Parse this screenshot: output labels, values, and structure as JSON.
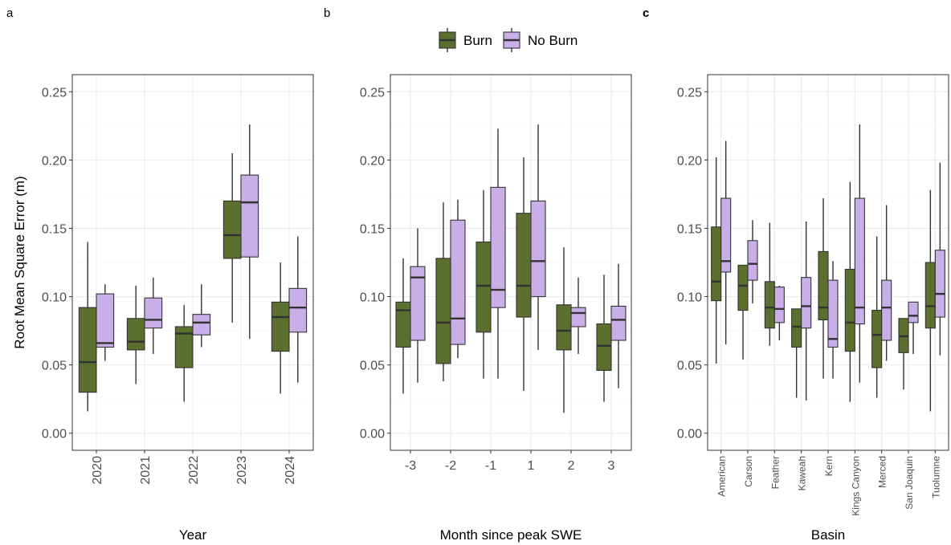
{
  "colors": {
    "burn": "#5b6f2e",
    "noburn": "#c9aee8"
  },
  "legend": {
    "burn_label": "Burn",
    "noburn_label": "No Burn"
  },
  "y_axis": {
    "label": "Root Mean Square Error (m)",
    "ticks": [
      "0.00",
      "0.05",
      "0.10",
      "0.15",
      "0.20",
      "0.25"
    ]
  },
  "chart_data": [
    {
      "type": "box",
      "panel_label": "a",
      "xlabel": "Year",
      "ylabel": "Root Mean Square Error (m)",
      "ylim": [
        0,
        0.25
      ],
      "x_label_rotated": true,
      "categories": [
        "2020",
        "2021",
        "2022",
        "2023",
        "2024"
      ],
      "series": [
        {
          "name": "Burn",
          "boxes": [
            {
              "min": 0.016,
              "q1": 0.03,
              "median": 0.052,
              "q3": 0.092,
              "max": 0.14
            },
            {
              "min": 0.036,
              "q1": 0.061,
              "median": 0.067,
              "q3": 0.084,
              "max": 0.108
            },
            {
              "min": 0.023,
              "q1": 0.048,
              "median": 0.073,
              "q3": 0.078,
              "max": 0.094
            },
            {
              "min": 0.081,
              "q1": 0.128,
              "median": 0.145,
              "q3": 0.17,
              "max": 0.205
            },
            {
              "min": 0.029,
              "q1": 0.06,
              "median": 0.085,
              "q3": 0.096,
              "max": 0.125
            }
          ]
        },
        {
          "name": "No Burn",
          "boxes": [
            {
              "min": 0.053,
              "q1": 0.063,
              "median": 0.066,
              "q3": 0.102,
              "max": 0.109
            },
            {
              "min": 0.058,
              "q1": 0.077,
              "median": 0.083,
              "q3": 0.099,
              "max": 0.114
            },
            {
              "min": 0.063,
              "q1": 0.072,
              "median": 0.081,
              "q3": 0.087,
              "max": 0.109
            },
            {
              "min": 0.069,
              "q1": 0.129,
              "median": 0.169,
              "q3": 0.189,
              "max": 0.226
            },
            {
              "min": 0.037,
              "q1": 0.074,
              "median": 0.092,
              "q3": 0.106,
              "max": 0.144
            }
          ]
        }
      ]
    },
    {
      "type": "box",
      "panel_label": "b",
      "xlabel": "Month since peak SWE",
      "ylim": [
        0,
        0.25
      ],
      "x_label_rotated": false,
      "categories": [
        "-3",
        "-2",
        "-1",
        "1",
        "2",
        "3"
      ],
      "series": [
        {
          "name": "Burn",
          "boxes": [
            {
              "min": 0.029,
              "q1": 0.063,
              "median": 0.09,
              "q3": 0.096,
              "max": 0.128
            },
            {
              "min": 0.038,
              "q1": 0.051,
              "median": 0.081,
              "q3": 0.128,
              "max": 0.169
            },
            {
              "min": 0.04,
              "q1": 0.074,
              "median": 0.108,
              "q3": 0.14,
              "max": 0.178
            },
            {
              "min": 0.031,
              "q1": 0.085,
              "median": 0.108,
              "q3": 0.161,
              "max": 0.202
            },
            {
              "min": 0.015,
              "q1": 0.061,
              "median": 0.075,
              "q3": 0.094,
              "max": 0.136
            },
            {
              "min": 0.023,
              "q1": 0.046,
              "median": 0.064,
              "q3": 0.08,
              "max": 0.116
            }
          ]
        },
        {
          "name": "No Burn",
          "boxes": [
            {
              "min": 0.037,
              "q1": 0.068,
              "median": 0.114,
              "q3": 0.122,
              "max": 0.15
            },
            {
              "min": 0.055,
              "q1": 0.065,
              "median": 0.084,
              "q3": 0.156,
              "max": 0.171
            },
            {
              "min": 0.04,
              "q1": 0.092,
              "median": 0.105,
              "q3": 0.18,
              "max": 0.223
            },
            {
              "min": 0.061,
              "q1": 0.1,
              "median": 0.126,
              "q3": 0.17,
              "max": 0.226
            },
            {
              "min": 0.058,
              "q1": 0.078,
              "median": 0.088,
              "q3": 0.092,
              "max": 0.114
            },
            {
              "min": 0.033,
              "q1": 0.068,
              "median": 0.083,
              "q3": 0.093,
              "max": 0.124
            }
          ]
        }
      ]
    },
    {
      "type": "box",
      "panel_label": "c",
      "xlabel": "Basin",
      "ylim": [
        0,
        0.25
      ],
      "x_label_rotated": true,
      "categories": [
        "American",
        "Carson",
        "Feather",
        "Kaweah",
        "Kern",
        "Kings Canyon",
        "Merced",
        "San Joaquin",
        "Tuolumne"
      ],
      "series": [
        {
          "name": "Burn",
          "boxes": [
            {
              "min": 0.051,
              "q1": 0.097,
              "median": 0.111,
              "q3": 0.151,
              "max": 0.202
            },
            {
              "min": 0.054,
              "q1": 0.09,
              "median": 0.108,
              "q3": 0.123,
              "max": 0.123
            },
            {
              "min": 0.064,
              "q1": 0.077,
              "median": 0.092,
              "q3": 0.111,
              "max": 0.154
            },
            {
              "min": 0.026,
              "q1": 0.063,
              "median": 0.078,
              "q3": 0.091,
              "max": 0.091
            },
            {
              "min": 0.04,
              "q1": 0.083,
              "median": 0.092,
              "q3": 0.133,
              "max": 0.172
            },
            {
              "min": 0.023,
              "q1": 0.06,
              "median": 0.081,
              "q3": 0.12,
              "max": 0.184
            },
            {
              "min": 0.026,
              "q1": 0.048,
              "median": 0.072,
              "q3": 0.09,
              "max": 0.144
            },
            {
              "min": 0.032,
              "q1": 0.059,
              "median": 0.071,
              "q3": 0.084,
              "max": 0.084
            },
            {
              "min": 0.016,
              "q1": 0.077,
              "median": 0.093,
              "q3": 0.125,
              "max": 0.178
            }
          ]
        },
        {
          "name": "No Burn",
          "boxes": [
            {
              "min": 0.065,
              "q1": 0.118,
              "median": 0.126,
              "q3": 0.172,
              "max": 0.214
            },
            {
              "min": 0.095,
              "q1": 0.112,
              "median": 0.124,
              "q3": 0.141,
              "max": 0.156
            },
            {
              "min": 0.068,
              "q1": 0.081,
              "median": 0.091,
              "q3": 0.107,
              "max": 0.108
            },
            {
              "min": 0.024,
              "q1": 0.077,
              "median": 0.093,
              "q3": 0.114,
              "max": 0.155
            },
            {
              "min": 0.04,
              "q1": 0.063,
              "median": 0.069,
              "q3": 0.112,
              "max": 0.126
            },
            {
              "min": 0.037,
              "q1": 0.08,
              "median": 0.092,
              "q3": 0.172,
              "max": 0.226
            },
            {
              "min": 0.053,
              "q1": 0.068,
              "median": 0.092,
              "q3": 0.112,
              "max": 0.167
            },
            {
              "min": 0.058,
              "q1": 0.081,
              "median": 0.086,
              "q3": 0.096,
              "max": 0.096
            },
            {
              "min": 0.057,
              "q1": 0.085,
              "median": 0.102,
              "q3": 0.134,
              "max": 0.198
            }
          ]
        }
      ]
    }
  ]
}
